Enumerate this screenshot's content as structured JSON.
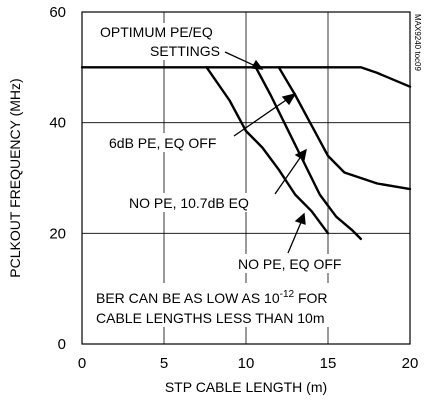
{
  "chart_data": {
    "type": "line",
    "title": "",
    "xlabel": "STP CABLE LENGTH (m)",
    "ylabel": "PCLKOUT FREQUENCY (MHz)",
    "xlim": [
      0,
      20
    ],
    "ylim": [
      0,
      60
    ],
    "x_ticks": [
      "0",
      "5",
      "10",
      "15",
      "20"
    ],
    "y_ticks": [
      "0",
      "20",
      "40",
      "60"
    ],
    "grid": true,
    "series": [
      {
        "name": "OPTIMUM PE/EQ SETTINGS",
        "points": [
          [
            0,
            50
          ],
          [
            17.0,
            50
          ],
          [
            18.0,
            49
          ],
          [
            20,
            46.5
          ]
        ]
      },
      {
        "name": "OPTIMUM PE/EQ SETTINGS",
        "points": [
          [
            12.0,
            50
          ],
          [
            13.0,
            45
          ],
          [
            14.0,
            39.5
          ],
          [
            15.0,
            34
          ],
          [
            16.0,
            31
          ],
          [
            17.0,
            30
          ],
          [
            18.0,
            29
          ],
          [
            20,
            28
          ]
        ]
      },
      {
        "name": "6dB PE, EQ OFF",
        "points": [
          [
            7.6,
            50
          ],
          [
            9.0,
            44
          ],
          [
            10.0,
            38.5
          ],
          [
            11.0,
            35.5
          ],
          [
            12.0,
            31.5
          ],
          [
            13.0,
            27
          ],
          [
            14.0,
            24
          ],
          [
            15.0,
            20
          ]
        ]
      },
      {
        "name": "NO PE, 10.7dB EQ",
        "points": [
          [
            10.6,
            50
          ],
          [
            11.5,
            45
          ],
          [
            12.5,
            39
          ],
          [
            13.5,
            33
          ],
          [
            14.5,
            27
          ],
          [
            15.5,
            23
          ],
          [
            16.5,
            20.5
          ],
          [
            17.0,
            19
          ]
        ]
      }
    ],
    "annotations": {
      "optimum_line1": "OPTIMUM PE/EQ",
      "optimum_line2": "SETTINGS",
      "six_db": "6dB PE, EQ OFF",
      "no_pe_eq": "NO PE, 10.7dB EQ",
      "no_pe_off": "NO PE, EQ OFF",
      "ber_line1_pre": "BER CAN BE AS LOW AS 10",
      "ber_line1_exp": "-12",
      "ber_line1_post": " FOR",
      "ber_line2": "CABLE LENGTHS LESS THAN 10m",
      "part_id": "MAX9240 toc09"
    }
  }
}
